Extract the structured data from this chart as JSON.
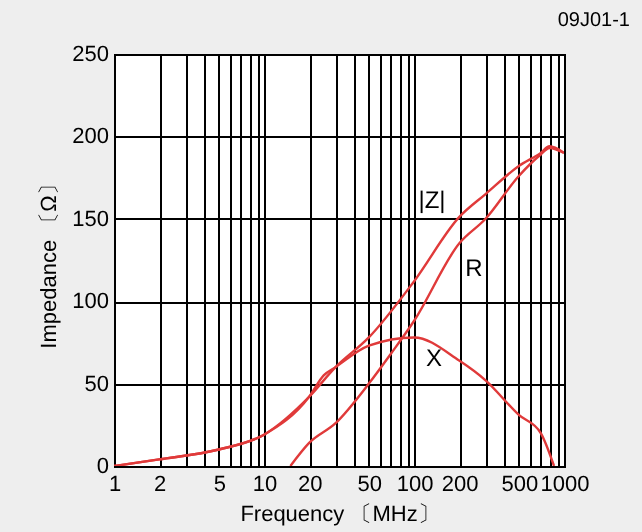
{
  "chart_data": {
    "type": "line",
    "xlabel": "Frequency 〔MHz〕",
    "ylabel": "Impedance 〔Ω〕",
    "log": "x",
    "grid": true,
    "xlim": [
      1,
      1000
    ],
    "ylim": [
      0,
      250
    ],
    "xticks": [
      1,
      2,
      {
        "value": 3,
        "label": null
      },
      {
        "value": 4,
        "label": null
      },
      5,
      {
        "value": 6,
        "label": null
      },
      {
        "value": 7,
        "label": null
      },
      {
        "value": 8,
        "label": null
      },
      {
        "value": 9,
        "label": null
      },
      10,
      20,
      {
        "value": 30,
        "label": null
      },
      {
        "value": 40,
        "label": null
      },
      50,
      {
        "value": 60,
        "label": null
      },
      {
        "value": 70,
        "label": null
      },
      {
        "value": 80,
        "label": null
      },
      {
        "value": 90,
        "label": null
      },
      100,
      200,
      {
        "value": 300,
        "label": null
      },
      {
        "value": 400,
        "label": null
      },
      500,
      {
        "value": 600,
        "label": null
      },
      {
        "value": 700,
        "label": null
      },
      {
        "value": 800,
        "label": null
      },
      {
        "value": 900,
        "label": null
      },
      1000
    ],
    "yticks": [
      0,
      50,
      100,
      150,
      200,
      250
    ],
    "series": [
      {
        "color": "#e03a3a",
        "x": [
          1,
          2,
          5,
          10,
          20,
          30,
          50,
          100,
          200,
          300,
          500,
          700,
          800,
          1000
        ],
        "values": [
          0,
          4,
          10,
          19,
          42,
          60,
          78,
          112,
          151,
          165,
          182,
          190,
          194,
          190
        ]
      },
      {
        "color": "#e03a3a",
        "x": [
          15,
          20,
          30,
          50,
          70,
          100,
          200,
          300,
          500,
          700,
          800,
          1000
        ],
        "values": [
          0,
          14,
          26,
          50,
          68,
          88,
          135,
          150,
          176,
          189,
          193,
          190
        ]
      },
      {
        "color": "#e03a3a",
        "x": [
          1,
          2,
          5,
          10,
          20,
          25,
          30,
          50,
          100,
          200,
          300,
          500,
          700,
          858
        ],
        "values": [
          0,
          4,
          10,
          19,
          42,
          55,
          60,
          73,
          78,
          64,
          52,
          31,
          20,
          0
        ]
      }
    ],
    "annotations": [
      "09J01-1",
      "|Z|",
      "R",
      "X"
    ]
  }
}
